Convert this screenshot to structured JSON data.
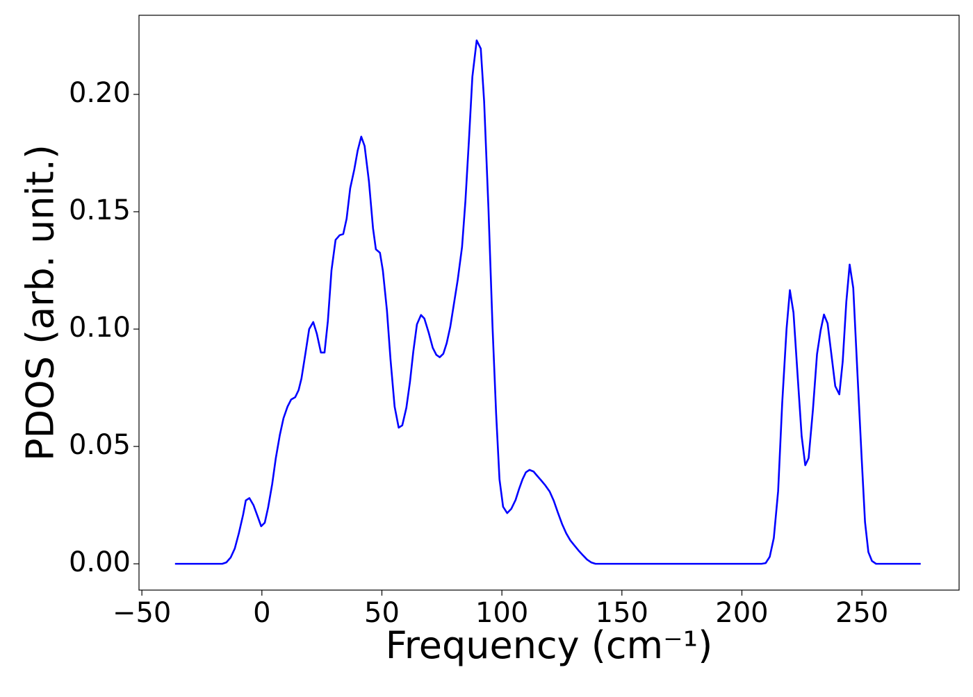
{
  "chart_data": {
    "type": "line",
    "xlabel": "Frequency (cm⁻¹)",
    "ylabel": "PDOS (arb. unit.)",
    "color": "#0000ff",
    "xlim": [
      -51.2,
      290.5
    ],
    "ylim": [
      -0.0112,
      0.2337
    ],
    "xticks": [
      {
        "value": -50,
        "label": "−50"
      },
      0,
      50,
      100,
      150,
      200,
      250
    ],
    "yticks": [
      {
        "value": 0,
        "label": "0.00"
      },
      0.05,
      {
        "value": 0.1,
        "label": "0.10"
      },
      0.15,
      {
        "value": 0.2,
        "label": "0.20"
      }
    ],
    "x": [
      -36.2,
      -16.5,
      -14.8,
      -13.0,
      -11.3,
      -9.6,
      -7.8,
      -6.7,
      -5.2,
      -3.5,
      -1.7,
      -0.3,
      1.2,
      2.6,
      4.3,
      5.8,
      7.5,
      9.0,
      10.7,
      12.2,
      13.9,
      15.3,
      16.5,
      18.2,
      19.7,
      21.4,
      22.9,
      24.6,
      26.1,
      27.5,
      29.0,
      30.7,
      32.4,
      33.9,
      35.3,
      36.8,
      38.5,
      39.9,
      41.4,
      42.8,
      44.6,
      46.3,
      47.5,
      49.2,
      50.4,
      52.1,
      53.6,
      55.3,
      57.0,
      58.5,
      60.2,
      61.7,
      63.1,
      64.6,
      66.3,
      67.7,
      69.5,
      71.2,
      72.7,
      74.1,
      75.6,
      77.0,
      78.5,
      79.9,
      81.6,
      83.4,
      84.8,
      86.3,
      87.7,
      89.5,
      91.2,
      92.6,
      94.4,
      96.1,
      97.6,
      99.0,
      100.5,
      102.2,
      103.9,
      105.7,
      107.1,
      108.6,
      110.0,
      111.5,
      113.2,
      114.6,
      116.4,
      118.1,
      119.9,
      121.6,
      123.3,
      125.1,
      126.8,
      128.5,
      130.3,
      132.0,
      133.8,
      135.5,
      137.2,
      139.0,
      140.4,
      208.2,
      209.9,
      211.6,
      213.3,
      215.1,
      216.8,
      218.6,
      220.0,
      221.5,
      223.2,
      224.9,
      226.4,
      227.8,
      229.6,
      231.3,
      232.8,
      234.2,
      235.7,
      237.1,
      238.9,
      240.6,
      242.0,
      243.5,
      244.9,
      246.4,
      248.1,
      249.9,
      251.3,
      252.7,
      254.2,
      255.9,
      274.5
    ],
    "values": [
      0,
      0,
      0.0006,
      0.0027,
      0.0065,
      0.013,
      0.021,
      0.027,
      0.028,
      0.025,
      0.02,
      0.016,
      0.0175,
      0.024,
      0.034,
      0.045,
      0.055,
      0.062,
      0.067,
      0.07,
      0.071,
      0.074,
      0.079,
      0.09,
      0.1,
      0.103,
      0.098,
      0.09,
      0.09,
      0.1035,
      0.125,
      0.138,
      0.14,
      0.1405,
      0.147,
      0.16,
      0.168,
      0.176,
      0.182,
      0.178,
      0.163,
      0.143,
      0.134,
      0.1325,
      0.125,
      0.108,
      0.087,
      0.067,
      0.058,
      0.059,
      0.0665,
      0.0775,
      0.0905,
      0.102,
      0.106,
      0.1045,
      0.0985,
      0.092,
      0.089,
      0.088,
      0.0895,
      0.094,
      0.101,
      0.11,
      0.121,
      0.135,
      0.1545,
      0.181,
      0.2075,
      0.223,
      0.2195,
      0.197,
      0.1515,
      0.101,
      0.064,
      0.036,
      0.0243,
      0.0216,
      0.0234,
      0.0272,
      0.0317,
      0.036,
      0.039,
      0.04,
      0.0393,
      0.0376,
      0.0355,
      0.0334,
      0.0308,
      0.0269,
      0.0219,
      0.0169,
      0.013,
      0.01,
      0.0077,
      0.0056,
      0.0036,
      0.0018,
      0.0006,
      0,
      0,
      0,
      0.0003,
      0.003,
      0.011,
      0.031,
      0.0686,
      0.1,
      0.1166,
      0.107,
      0.0805,
      0.0544,
      0.042,
      0.045,
      0.0657,
      0.0893,
      0.0994,
      0.1062,
      0.1024,
      0.0908,
      0.0757,
      0.0722,
      0.0861,
      0.1115,
      0.1275,
      0.1175,
      0.082,
      0.045,
      0.0178,
      0.005,
      0.0012,
      0,
      0
    ]
  }
}
